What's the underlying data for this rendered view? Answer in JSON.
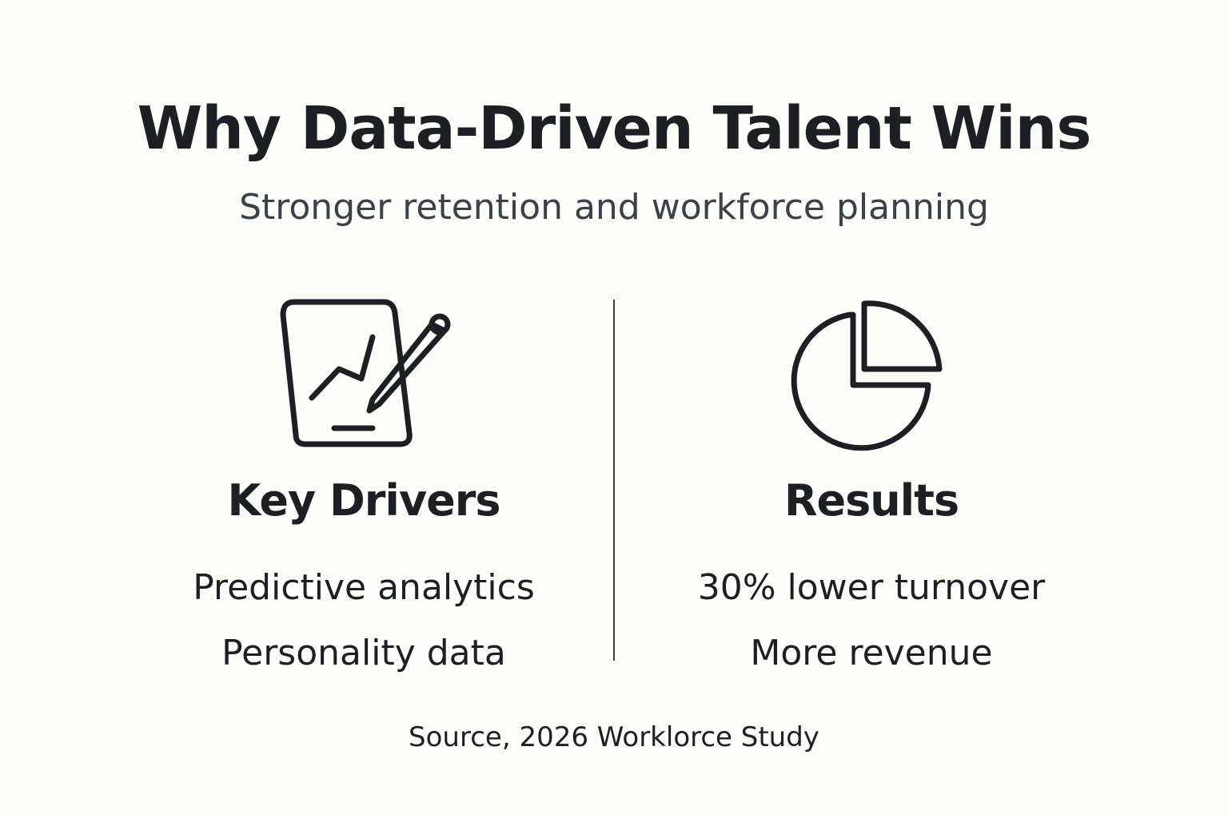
{
  "header": {
    "title": "Why Data-Driven Talent Wins",
    "subtitle": "Stronger retention and workforce planning"
  },
  "columns": [
    {
      "heading": "Key Drivers",
      "items": [
        "Predictive analytics",
        "Personality data"
      ]
    },
    {
      "heading": "Results",
      "items": [
        "30% lower turnover",
        "More revenue"
      ]
    }
  ],
  "footer": {
    "source": "Source, 2026 Worklorce Study"
  }
}
